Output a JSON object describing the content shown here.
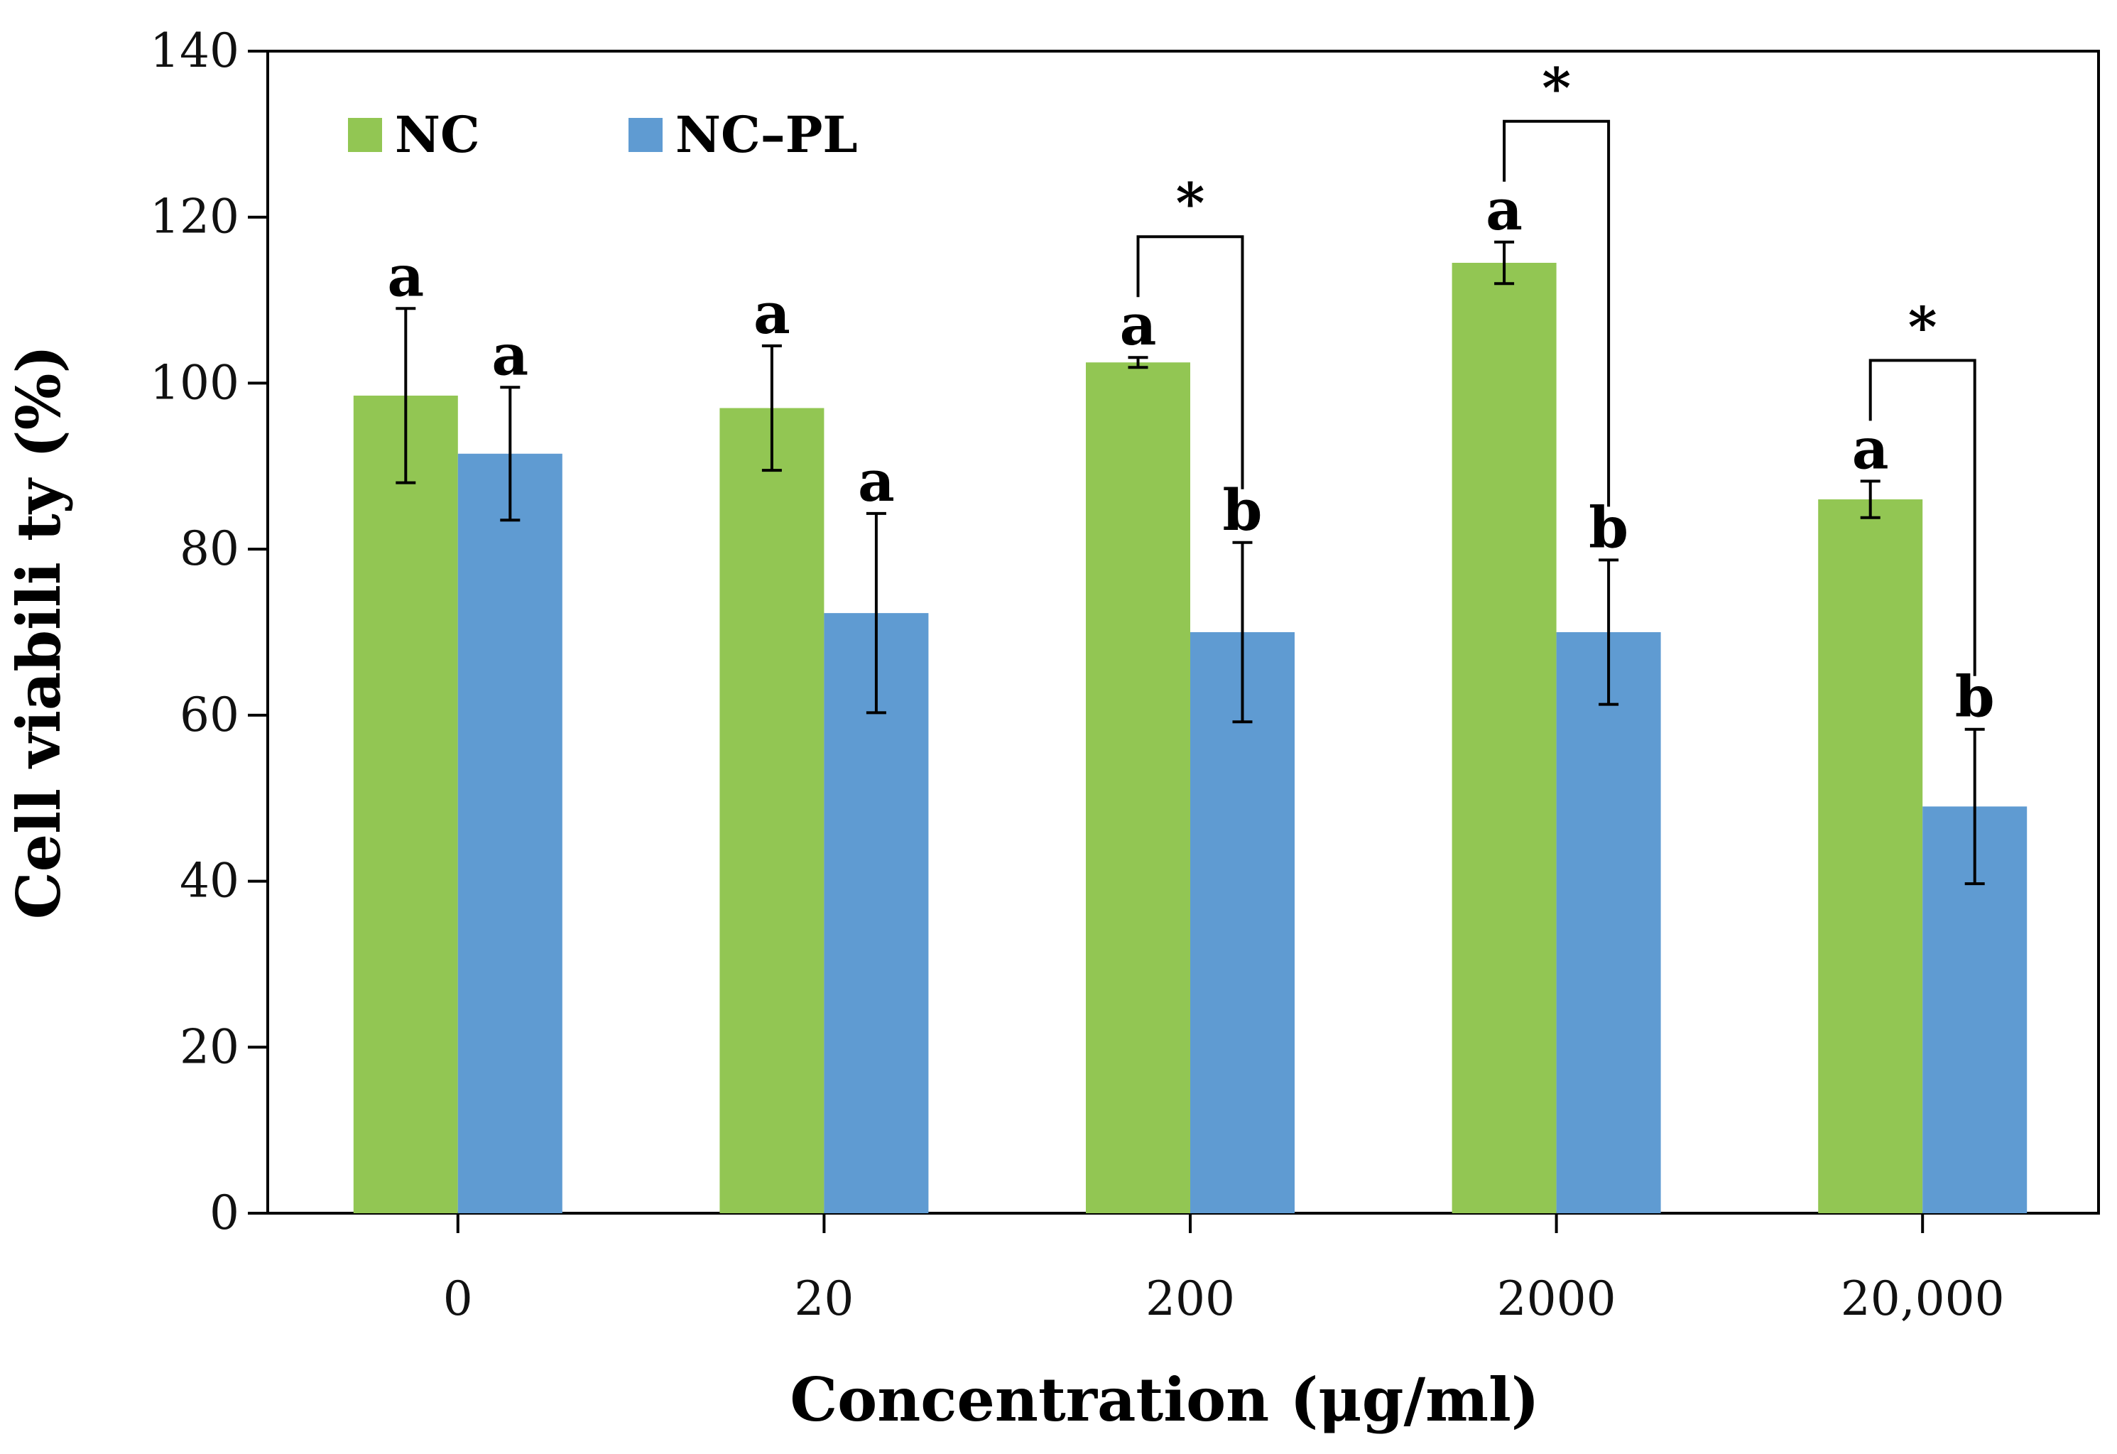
{
  "chart_data": {
    "type": "bar",
    "xlabel": "Concentration (μg/ml)",
    "ylabel": "Cell viabili ty (%)",
    "ylim": [
      0,
      140
    ],
    "yticks": [
      0,
      20,
      40,
      60,
      80,
      100,
      120,
      140
    ],
    "categories": [
      "0",
      "20",
      "200",
      "2000",
      "20,000"
    ],
    "legend_position": "top-left",
    "grid": false,
    "series": [
      {
        "name": "NC",
        "color": "#92c653",
        "values": [
          98.5,
          97,
          102.5,
          114.5,
          86
        ],
        "errors": [
          10.5,
          7.5,
          0.6,
          2.5,
          2.2
        ],
        "letters": [
          "a",
          "a",
          "a",
          "a",
          "a"
        ]
      },
      {
        "name": "NC–PL",
        "color": "#5f9bd2",
        "values": [
          91.5,
          72.3,
          70,
          70,
          49
        ],
        "errors": [
          8,
          12,
          10.8,
          8.7,
          9.3
        ],
        "letters": [
          "a",
          "a",
          "b",
          "b",
          "b"
        ]
      }
    ],
    "significance": [
      {
        "category": "200",
        "label": "*"
      },
      {
        "category": "2000",
        "label": "*"
      },
      {
        "category": "20,000",
        "label": "*"
      }
    ]
  }
}
